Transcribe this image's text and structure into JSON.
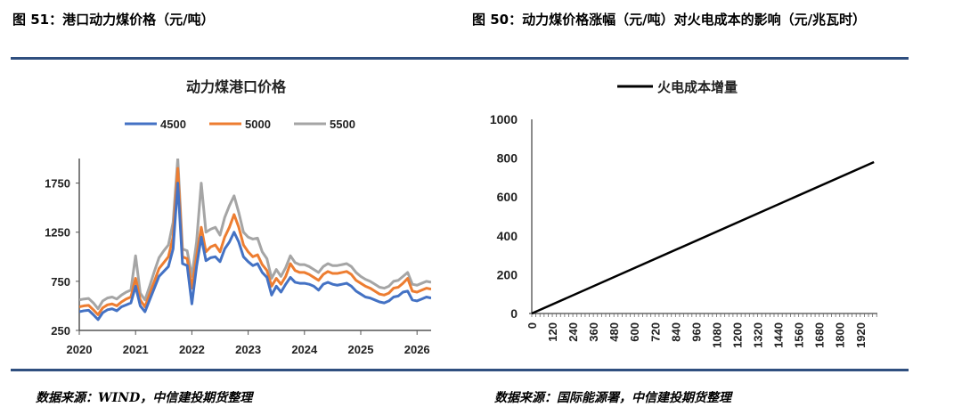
{
  "left": {
    "figure_title": "图 51：港口动力煤价格（元/吨）",
    "source": "数据来源：WIND，中信建投期货整理"
  },
  "right": {
    "figure_title": "图 50：动力煤价格涨幅（元/吨）对火电成本的影响（元/兆瓦时）",
    "source": "数据来源：国际能源署，中信建投期货整理"
  },
  "chart_data": [
    {
      "type": "line",
      "title": "动力煤港口价格",
      "legend_position": "top",
      "x_start": "2020-01",
      "x_frequency": "monthly",
      "xlim": [
        2020,
        2026.25
      ],
      "ylim": [
        250,
        2000
      ],
      "xticks": [
        "2020",
        "2021",
        "2022",
        "2023",
        "2024",
        "2025",
        "2026"
      ],
      "yticks": [
        250,
        750,
        1250,
        1750
      ],
      "grid": false,
      "series": [
        {
          "name": "4500",
          "color": "#4472c4",
          "values": [
            440,
            450,
            455,
            410,
            360,
            430,
            460,
            470,
            450,
            490,
            510,
            530,
            700,
            500,
            440,
            560,
            680,
            800,
            850,
            900,
            1080,
            1750,
            930,
            910,
            520,
            900,
            1200,
            960,
            990,
            1000,
            950,
            1080,
            1150,
            1250,
            1150,
            1000,
            950,
            910,
            930,
            840,
            790,
            610,
            700,
            640,
            720,
            790,
            740,
            730,
            730,
            720,
            700,
            660,
            720,
            740,
            720,
            710,
            720,
            730,
            700,
            650,
            620,
            590,
            580,
            560,
            540,
            530,
            550,
            590,
            600,
            640,
            650,
            560,
            550,
            570,
            590,
            580
          ]
        },
        {
          "name": "5000",
          "color": "#ed7d31",
          "values": [
            490,
            500,
            505,
            460,
            410,
            480,
            510,
            520,
            500,
            540,
            570,
            590,
            780,
            560,
            490,
            620,
            750,
            880,
            940,
            1000,
            1200,
            1900,
            1000,
            980,
            680,
            1000,
            1300,
            1050,
            1100,
            1120,
            1050,
            1200,
            1300,
            1430,
            1300,
            1120,
            1050,
            1000,
            1020,
            920,
            860,
            700,
            780,
            720,
            800,
            930,
            860,
            840,
            840,
            820,
            790,
            760,
            820,
            850,
            830,
            830,
            840,
            850,
            820,
            760,
            730,
            700,
            680,
            650,
            620,
            610,
            630,
            680,
            690,
            730,
            780,
            650,
            640,
            660,
            680,
            670
          ]
        },
        {
          "name": "5500",
          "color": "#a5a5a5",
          "values": [
            560,
            570,
            575,
            530,
            470,
            550,
            580,
            590,
            570,
            610,
            640,
            660,
            1010,
            630,
            560,
            700,
            850,
            990,
            1060,
            1120,
            1350,
            2000,
            1080,
            1060,
            800,
            1150,
            1750,
            1250,
            1280,
            1300,
            1220,
            1400,
            1520,
            1620,
            1450,
            1250,
            1200,
            1180,
            1190,
            1050,
            980,
            780,
            870,
            800,
            890,
            1010,
            940,
            920,
            920,
            900,
            870,
            840,
            900,
            930,
            910,
            910,
            920,
            930,
            900,
            840,
            800,
            770,
            750,
            720,
            690,
            680,
            700,
            750,
            760,
            800,
            840,
            720,
            710,
            730,
            750,
            740
          ]
        }
      ]
    },
    {
      "type": "line",
      "legend_position": "top",
      "xlim": [
        0,
        2000
      ],
      "ylim": [
        0,
        1000
      ],
      "xticks": [
        0,
        120,
        240,
        360,
        480,
        600,
        720,
        840,
        960,
        1080,
        1200,
        1320,
        1440,
        1560,
        1680,
        1800,
        1920
      ],
      "yticks": [
        0,
        200,
        400,
        600,
        800,
        1000
      ],
      "grid": false,
      "series": [
        {
          "name": "火电成本增量",
          "color": "#000000",
          "x": [
            0,
            2000
          ],
          "values": [
            0,
            780
          ]
        }
      ]
    }
  ]
}
